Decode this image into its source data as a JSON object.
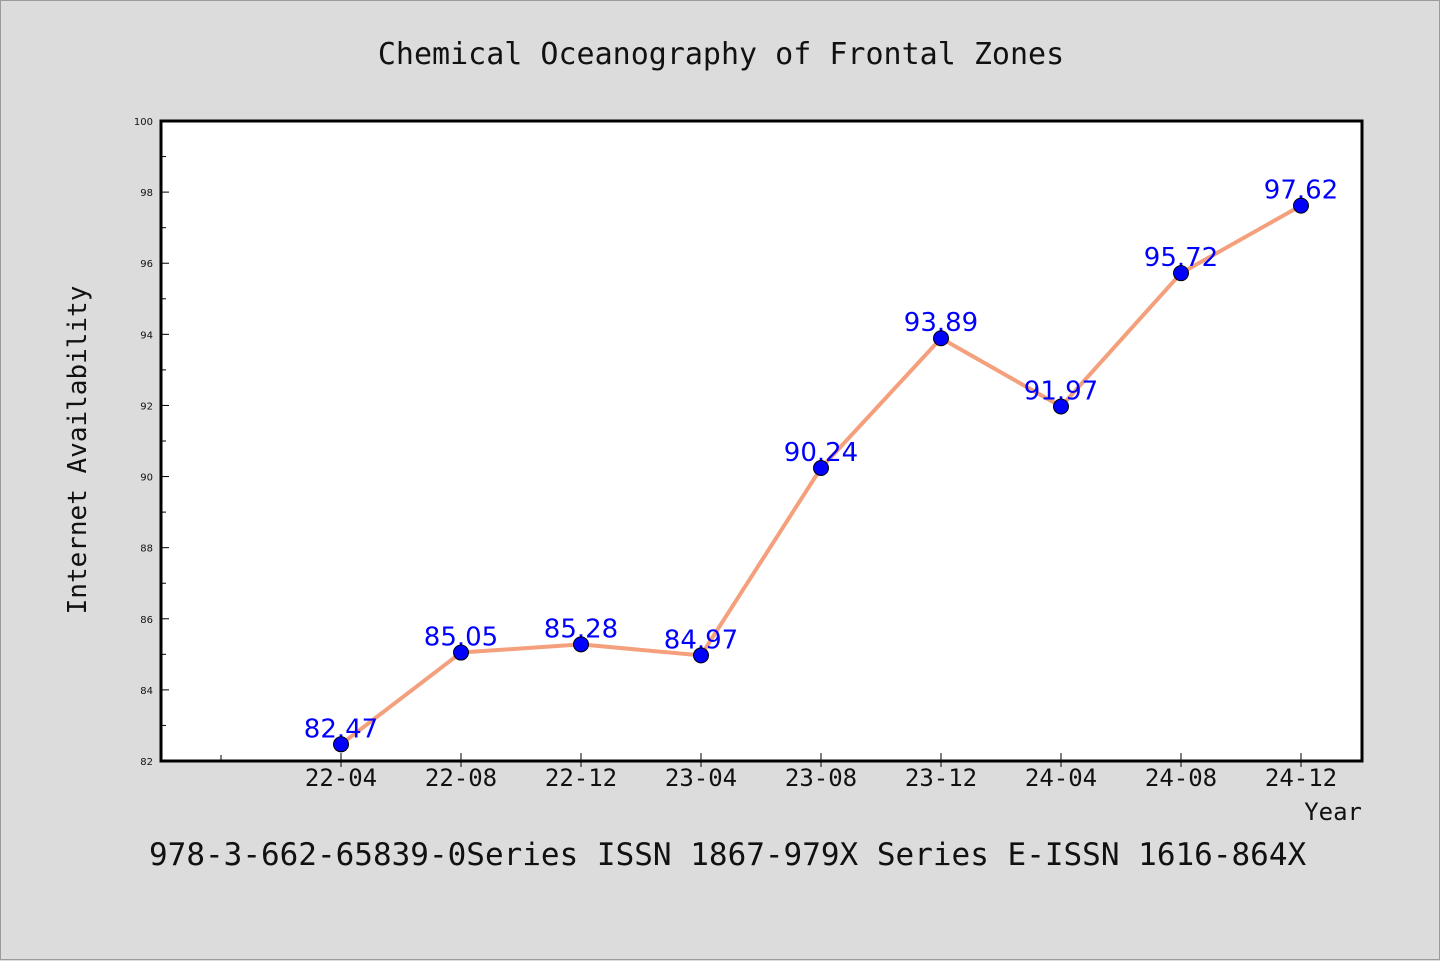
{
  "chart_data": {
    "type": "line",
    "title": "Chemical Oceanography of Frontal Zones",
    "xlabel": "Year",
    "ylabel": "Internet Availability",
    "categories": [
      "22-04",
      "22-08",
      "22-12",
      "23-04",
      "23-08",
      "23-12",
      "24-04",
      "24-08",
      "24-12"
    ],
    "series": [
      {
        "values": [
          82.47,
          85.05,
          85.28,
          84.97,
          90.24,
          93.89,
          91.97,
          95.72,
          97.62
        ],
        "labels": [
          "82.47",
          "85.05",
          "85.28",
          "84.97",
          "90.24",
          "93.89",
          "91.97",
          "95.72",
          "97.62"
        ],
        "line_color": "#f4a07c",
        "marker_color": "#0000ff"
      }
    ],
    "ylim": [
      82,
      100
    ],
    "yticks": [
      "82",
      "84",
      "86",
      "88",
      "90",
      "92",
      "94",
      "96",
      "98",
      "100"
    ],
    "grid": false,
    "legend": false
  },
  "footer": "978-3-662-65839-0Series ISSN 1867-979X Series E-ISSN 1616-864X"
}
